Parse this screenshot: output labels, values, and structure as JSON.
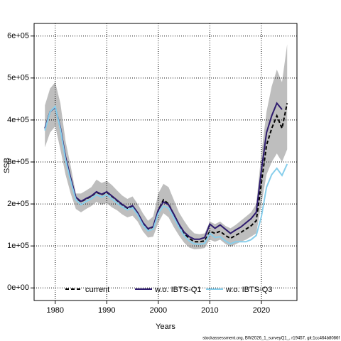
{
  "chart_data": {
    "type": "line",
    "x_label": "Years",
    "y_label": "SSB",
    "footer": "stockassessment.org, BW2026_1_surveyQ1_, r19457, git:1cc464b8086f",
    "x": [
      1978,
      1979,
      1980,
      1981,
      1982,
      1983,
      1984,
      1985,
      1986,
      1987,
      1988,
      1989,
      1990,
      1991,
      1992,
      1993,
      1994,
      1995,
      1996,
      1997,
      1998,
      1999,
      2000,
      2001,
      2002,
      2003,
      2004,
      2005,
      2006,
      2007,
      2008,
      2009,
      2010,
      2011,
      2012,
      2013,
      2014,
      2015,
      2016,
      2017,
      2018,
      2019,
      2020,
      2021,
      2022,
      2023,
      2024,
      2025
    ],
    "band": {
      "color": "#bebebe",
      "lower": [
        335000,
        370000,
        385000,
        330000,
        270000,
        225000,
        188000,
        180000,
        188000,
        195000,
        205000,
        198000,
        202000,
        192000,
        185000,
        175000,
        168000,
        172000,
        158000,
        135000,
        120000,
        122000,
        155000,
        178000,
        168000,
        145000,
        125000,
        108000,
        96000,
        92000,
        93000,
        95000,
        115000,
        110000,
        115000,
        105000,
        98000,
        104000,
        110000,
        115000,
        122000,
        130000,
        200000,
        270000,
        300000,
        320000,
        300000,
        330000
      ],
      "upper": [
        435000,
        475000,
        490000,
        440000,
        350000,
        290000,
        225000,
        225000,
        232000,
        240000,
        258000,
        250000,
        255000,
        245000,
        232000,
        220000,
        212000,
        218000,
        200000,
        178000,
        160000,
        170000,
        225000,
        248000,
        240000,
        210000,
        180000,
        160000,
        142000,
        130000,
        128000,
        130000,
        158000,
        152000,
        158000,
        148000,
        142000,
        150000,
        160000,
        170000,
        180000,
        200000,
        320000,
        420000,
        480000,
        520000,
        490000,
        580000
      ]
    },
    "series": [
      {
        "name": "current",
        "color": "#000000",
        "dashed": true,
        "values": [
          380000,
          420000,
          430000,
          380000,
          310000,
          260000,
          215000,
          205000,
          212000,
          218000,
          228000,
          222000,
          228000,
          218000,
          208000,
          198000,
          190000,
          195000,
          178000,
          155000,
          140000,
          145000,
          185000,
          210000,
          200000,
          175000,
          150000,
          130000,
          118000,
          110000,
          110000,
          112000,
          135000,
          130000,
          135000,
          125000,
          118000,
          125000,
          132000,
          140000,
          148000,
          160000,
          250000,
          340000,
          380000,
          410000,
          380000,
          440000
        ]
      },
      {
        "name": "w.o. IBTS-Q1",
        "color": "#2d1a6e",
        "dashed": false,
        "values": [
          380000,
          420000,
          430000,
          382000,
          312000,
          262000,
          216000,
          206000,
          213000,
          219000,
          229000,
          223000,
          229000,
          219000,
          209000,
          199000,
          191000,
          196000,
          179000,
          156000,
          141000,
          146000,
          186000,
          205000,
          198000,
          176000,
          152000,
          133000,
          122000,
          116000,
          116000,
          120000,
          152000,
          142000,
          150000,
          140000,
          130000,
          138000,
          145000,
          155000,
          165000,
          180000,
          280000,
          370000,
          410000,
          440000,
          425000,
          null
        ]
      },
      {
        "name": "w.o. IBTS-Q3",
        "color": "#87ceeb",
        "dashed": false,
        "values": [
          375000,
          420000,
          432000,
          378000,
          305000,
          255000,
          210000,
          198000,
          206000,
          212000,
          222000,
          216000,
          222000,
          212000,
          202000,
          193000,
          186000,
          191000,
          174000,
          150000,
          136000,
          140000,
          178000,
          195000,
          190000,
          168000,
          145000,
          125000,
          112000,
          105000,
          104000,
          106000,
          130000,
          120000,
          122000,
          112000,
          105000,
          110000,
          110000,
          110000,
          115000,
          125000,
          170000,
          240000,
          270000,
          285000,
          268000,
          295000
        ]
      }
    ],
    "xlim": [
      1975.9,
      2026.9
    ],
    "ylim": [
      -30000,
      630000
    ],
    "xticks": [
      1980,
      1990,
      2000,
      2010,
      2020
    ],
    "yticks": [
      {
        "value": 0,
        "label": "0e+00"
      },
      {
        "value": 100000,
        "label": "1e+05"
      },
      {
        "value": 200000,
        "label": "2e+05"
      },
      {
        "value": 300000,
        "label": "3e+05"
      },
      {
        "value": 400000,
        "label": "4e+05"
      },
      {
        "value": 500000,
        "label": "5e+05"
      },
      {
        "value": 600000,
        "label": "6e+05"
      }
    ],
    "grid": true
  }
}
